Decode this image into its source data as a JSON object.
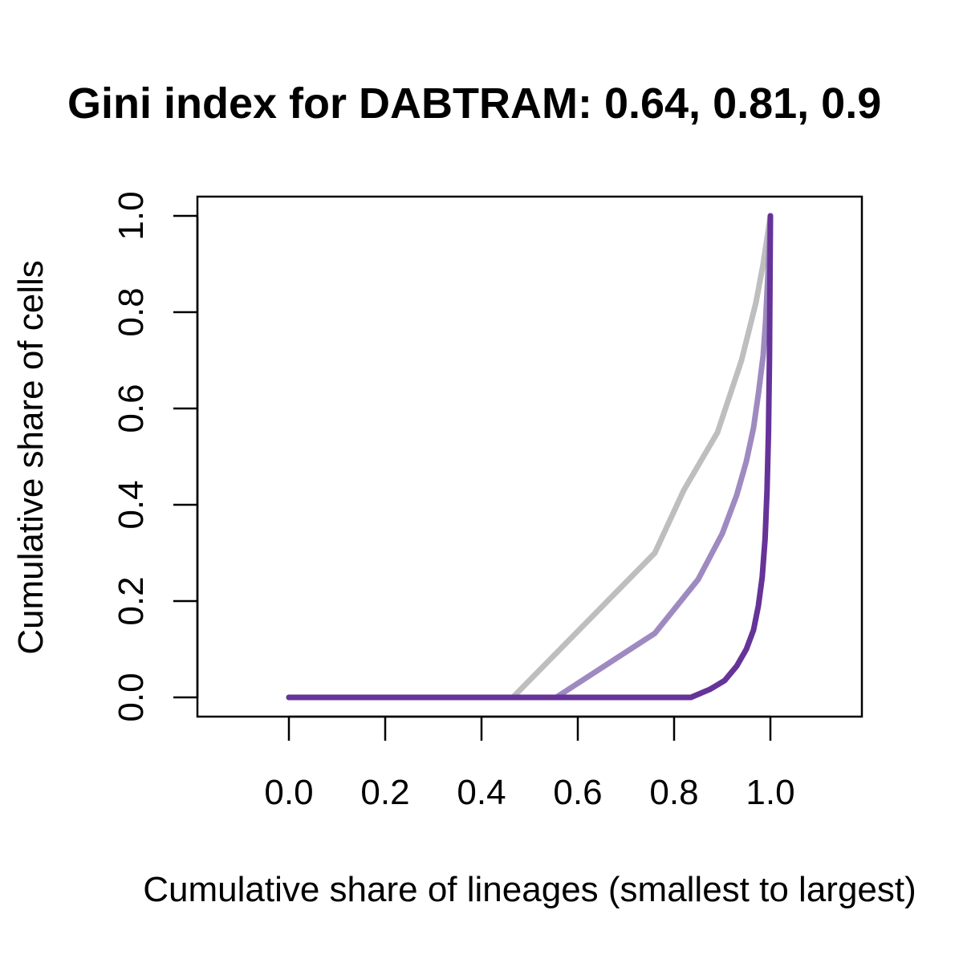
{
  "chart_data": {
    "type": "line",
    "title": "Gini index for DABTRAM: 0.64, 0.81, 0.9",
    "xlabel": "Cumulative share of lineages (smallest to largest)",
    "ylabel": "Cumulative share of cells",
    "xlim": [
      -0.19,
      1.19
    ],
    "ylim": [
      -0.04,
      1.04
    ],
    "x_ticks": [
      "0.0",
      "0.2",
      "0.4",
      "0.6",
      "0.8",
      "1.0"
    ],
    "y_ticks": [
      "0.0",
      "0.2",
      "0.4",
      "0.6",
      "0.8",
      "1.0"
    ],
    "grid": false,
    "legend": false,
    "series": [
      {
        "color": "#bebebe",
        "x": [
          0,
          0.465,
          0.76,
          0.82,
          0.89,
          0.94,
          0.97,
          0.985,
          1.0
        ],
        "y": [
          0,
          0,
          0.3,
          0.43,
          0.55,
          0.7,
          0.82,
          0.9,
          1.0
        ]
      },
      {
        "color": "#9e8ac0",
        "x": [
          0,
          0.555,
          0.76,
          0.85,
          0.9,
          0.93,
          0.95,
          0.965,
          0.975,
          0.985,
          0.99,
          0.995,
          1.0
        ],
        "y": [
          0,
          0,
          0.133,
          0.245,
          0.34,
          0.42,
          0.49,
          0.56,
          0.63,
          0.71,
          0.78,
          0.88,
          1.0
        ]
      },
      {
        "color": "#663399",
        "x": [
          0,
          0.835,
          0.875,
          0.905,
          0.93,
          0.95,
          0.965,
          0.975,
          0.983,
          0.989,
          0.993,
          0.996,
          0.998,
          0.999,
          1.0
        ],
        "y": [
          0,
          0,
          0.017,
          0.035,
          0.065,
          0.1,
          0.14,
          0.19,
          0.25,
          0.33,
          0.43,
          0.55,
          0.7,
          0.85,
          1.0
        ]
      }
    ]
  }
}
